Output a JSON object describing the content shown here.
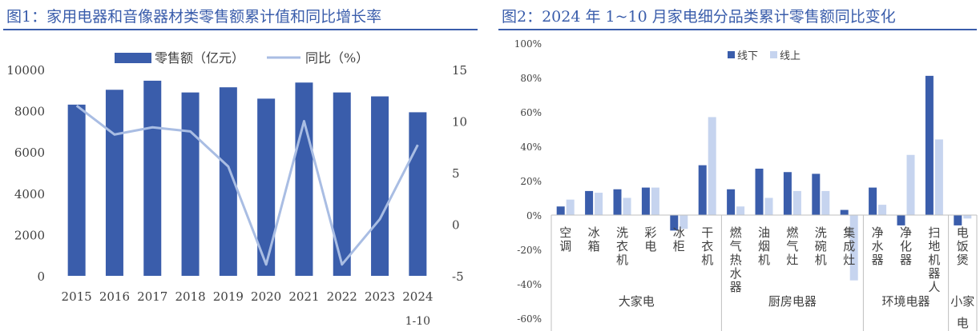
{
  "chart_data": [
    {
      "type": "bar+line",
      "title": "图1：家用电器和音像器材类零售额累计值和同比增长率",
      "categories": [
        "2015",
        "2016",
        "2017",
        "2018",
        "2019",
        "2020",
        "2021",
        "2022",
        "2023",
        "2024"
      ],
      "category_sublabels": [
        "",
        "",
        "",
        "",
        "",
        "",
        "",
        "",
        "",
        "1-10"
      ],
      "series": [
        {
          "name": "零售额（亿元）",
          "type": "bar",
          "axis": "left",
          "color": "#3a5dab",
          "values": [
            8300,
            9020,
            9460,
            8890,
            9140,
            8590,
            9370,
            8890,
            8700,
            7930
          ]
        },
        {
          "name": "同比（%）",
          "type": "line",
          "axis": "right",
          "color": "#a9bde3",
          "values": [
            11.5,
            8.7,
            9.4,
            9.0,
            5.6,
            -3.9,
            10.0,
            -3.9,
            0.5,
            7.7
          ]
        }
      ],
      "y_left": {
        "min": 0,
        "max": 10000,
        "ticks": [
          0,
          2000,
          4000,
          6000,
          8000,
          10000
        ]
      },
      "y_right": {
        "min": -5,
        "max": 15,
        "ticks": [
          -5,
          0,
          5,
          10,
          15
        ]
      },
      "legend": "top-center",
      "grid": false
    },
    {
      "type": "bar",
      "title": "图2：2024 年 1~10 月家电细分品类累计零售额同比变化",
      "categories": [
        "空调",
        "冰箱",
        "洗衣机",
        "彩电",
        "冰柜",
        "干衣机",
        "燃气热水器",
        "油烟机",
        "燃气灶",
        "洗碗机",
        "集成灶",
        "净水器",
        "净化器",
        "扫地机器人",
        "电饭煲"
      ],
      "groups": [
        {
          "label": "大家电",
          "count": 6
        },
        {
          "label": "厨房电器",
          "count": 5
        },
        {
          "label": "环境电器",
          "count": 3
        },
        {
          "label": "小家电",
          "count": 1
        }
      ],
      "series": [
        {
          "name": "线下",
          "color": "#3a5dab",
          "values": [
            5,
            14,
            15,
            16,
            -9,
            29,
            15,
            27,
            25,
            24,
            3,
            16,
            -6,
            81,
            -6
          ]
        },
        {
          "name": "线上",
          "color": "#c6d4ef",
          "values": [
            9,
            13,
            10,
            16,
            -8,
            57,
            5,
            10,
            14,
            14,
            -38,
            6,
            35,
            44,
            -2
          ]
        }
      ],
      "y_ticks": [
        "100%",
        "80%",
        "60%",
        "40%",
        "20%",
        "0%",
        "-20%",
        "-40%",
        "-60%"
      ],
      "ylim": [
        -60,
        100
      ],
      "legend": "top-center",
      "grid": false
    }
  ]
}
